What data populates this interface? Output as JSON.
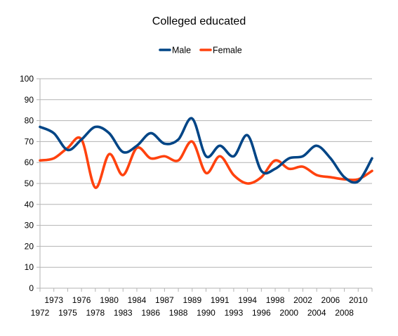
{
  "chart_data": {
    "type": "line",
    "title": "Colleged educated",
    "xlabel": "",
    "ylabel": "",
    "ylim": [
      0,
      100
    ],
    "yticks": [
      0,
      10,
      20,
      30,
      40,
      50,
      60,
      70,
      80,
      90,
      100
    ],
    "grid": "horizontal",
    "legend": "top-center",
    "smooth": true,
    "categories": [
      "1972",
      "1973",
      "1975",
      "1976",
      "1978",
      "1980",
      "1983",
      "1984",
      "1986",
      "1987",
      "1988",
      "1988",
      "1989",
      "1990",
      "1991",
      "1993",
      "1994",
      "1996",
      "1998",
      "2000",
      "2002",
      "2004",
      "2006",
      "2008",
      "2010"
    ],
    "tick_labels_row1": [
      "1973",
      "1976",
      "1980",
      "1984",
      "1987",
      "1989",
      "1991",
      "1994",
      "1998",
      "2002",
      "2006",
      "2010"
    ],
    "tick_labels_row2": [
      "1972",
      "1975",
      "1978",
      "1983",
      "1986",
      "1988",
      "1990",
      "1993",
      "1996",
      "2000",
      "2004",
      "2008"
    ],
    "series": [
      {
        "name": "Male",
        "color": "#004586",
        "values": [
          77,
          74,
          66,
          71,
          77,
          74,
          65,
          68,
          74,
          69,
          71,
          81,
          63,
          68,
          63,
          73,
          56,
          57,
          62,
          63,
          68,
          62,
          53,
          51,
          62
        ]
      },
      {
        "name": "Female",
        "color": "#ff420e",
        "values": [
          61,
          62,
          67,
          71,
          48,
          64,
          54,
          67,
          62,
          63,
          61,
          70,
          55,
          63,
          54,
          50,
          53,
          61,
          57,
          58,
          54,
          53,
          52,
          52,
          56
        ]
      }
    ]
  }
}
